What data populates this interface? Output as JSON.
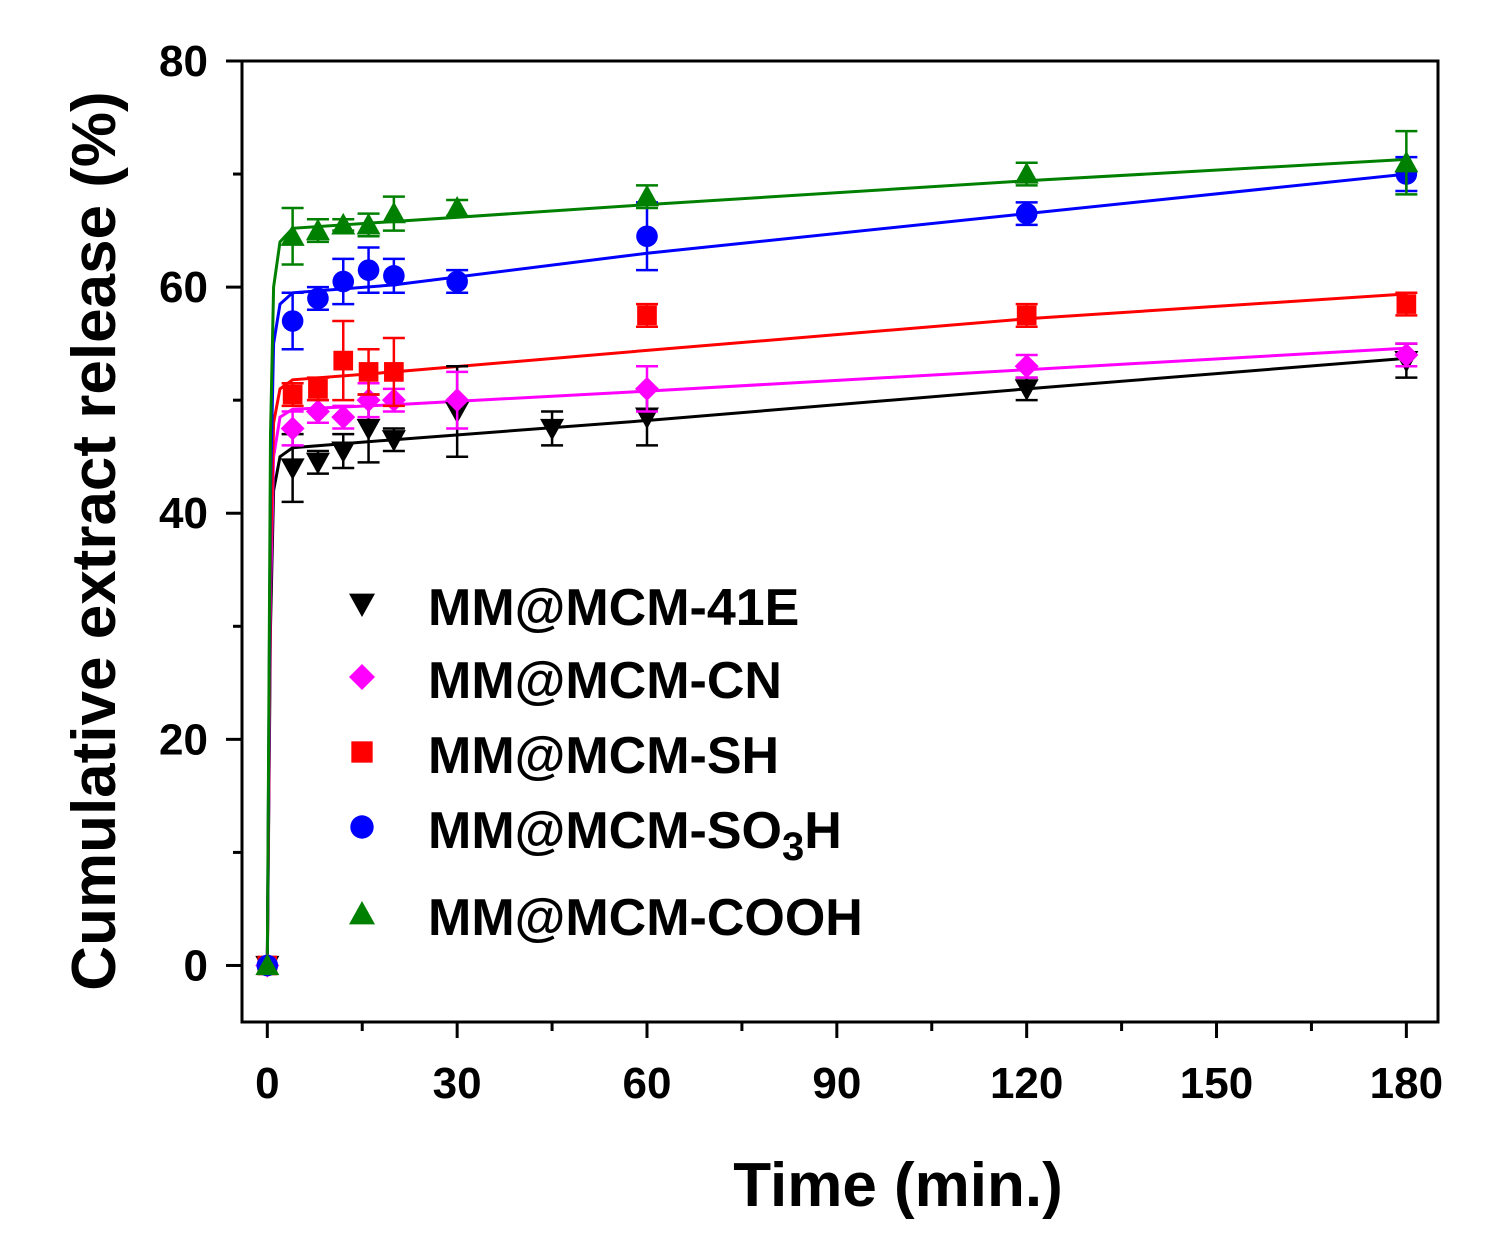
{
  "chart_data": {
    "type": "scatter",
    "title": "",
    "xlabel": "Time (min.)",
    "ylabel": "Cumulative extract release (%)",
    "xlim": [
      -4,
      185
    ],
    "ylim": [
      -5,
      80
    ],
    "xticks": [
      0,
      30,
      60,
      90,
      120,
      150,
      180
    ],
    "xtick_labels": [
      "0",
      "30",
      "60",
      "90",
      "120",
      "150",
      "180"
    ],
    "yticks": [
      0,
      20,
      40,
      60,
      80
    ],
    "ytick_labels": [
      "0",
      "20",
      "40",
      "60",
      "80"
    ],
    "legend_position": "center-left",
    "series": [
      {
        "name": "MM@MCM-41E",
        "color": "#000000",
        "marker": "triangle-down",
        "points": [
          {
            "x": 0,
            "y": 0,
            "err": 0
          },
          {
            "x": 4,
            "y": 44,
            "err": 3
          },
          {
            "x": 8,
            "y": 44.5,
            "err": 1
          },
          {
            "x": 12,
            "y": 45.5,
            "err": 1.5
          },
          {
            "x": 16,
            "y": 47.5,
            "err": 3
          },
          {
            "x": 20,
            "y": 46.5,
            "err": 1
          },
          {
            "x": 30,
            "y": 49,
            "err": 4
          },
          {
            "x": 45,
            "y": 47.5,
            "err": 1.5
          },
          {
            "x": 60,
            "y": 48.5,
            "err": 2.5
          },
          {
            "x": 120,
            "y": 51,
            "err": 1
          },
          {
            "x": 180,
            "y": 53.5,
            "err": 1.5
          }
        ],
        "fit": [
          [
            0,
            0
          ],
          [
            0.5,
            30
          ],
          [
            1,
            42
          ],
          [
            2,
            45
          ],
          [
            4,
            45.8
          ],
          [
            20,
            46.5
          ],
          [
            60,
            48.2
          ],
          [
            120,
            51
          ],
          [
            180,
            53.7
          ]
        ]
      },
      {
        "name": "MM@MCM-CN",
        "color": "#ff00ff",
        "marker": "diamond",
        "points": [
          {
            "x": 0,
            "y": 0,
            "err": 0
          },
          {
            "x": 4,
            "y": 47.5,
            "err": 1.5
          },
          {
            "x": 8,
            "y": 49,
            "err": 1
          },
          {
            "x": 12,
            "y": 48.5,
            "err": 1
          },
          {
            "x": 16,
            "y": 50,
            "err": 1.5
          },
          {
            "x": 20,
            "y": 50,
            "err": 1
          },
          {
            "x": 30,
            "y": 50,
            "err": 2.5
          },
          {
            "x": 60,
            "y": 51,
            "err": 2
          },
          {
            "x": 120,
            "y": 53,
            "err": 1
          },
          {
            "x": 180,
            "y": 54,
            "err": 1
          }
        ],
        "fit": [
          [
            0,
            0
          ],
          [
            0.5,
            33
          ],
          [
            1,
            45
          ],
          [
            2,
            48.5
          ],
          [
            4,
            49.2
          ],
          [
            20,
            49.6
          ],
          [
            60,
            50.8
          ],
          [
            120,
            52.7
          ],
          [
            180,
            54.6
          ]
        ]
      },
      {
        "name": "MM@MCM-SH",
        "color": "#ff0000",
        "marker": "square",
        "points": [
          {
            "x": 0,
            "y": 0,
            "err": 0
          },
          {
            "x": 4,
            "y": 50.5,
            "err": 1
          },
          {
            "x": 8,
            "y": 51,
            "err": 1
          },
          {
            "x": 12,
            "y": 53.5,
            "err": 3.5
          },
          {
            "x": 16,
            "y": 52.5,
            "err": 2
          },
          {
            "x": 20,
            "y": 52.5,
            "err": 3
          },
          {
            "x": 60,
            "y": 57.5,
            "err": 1
          },
          {
            "x": 120,
            "y": 57.5,
            "err": 1
          },
          {
            "x": 180,
            "y": 58.5,
            "err": 1
          }
        ],
        "fit": [
          [
            0,
            0
          ],
          [
            0.5,
            36
          ],
          [
            1,
            48
          ],
          [
            2,
            51
          ],
          [
            4,
            51.8
          ],
          [
            20,
            52.5
          ],
          [
            60,
            54.4
          ],
          [
            120,
            57.2
          ],
          [
            180,
            59.4
          ]
        ]
      },
      {
        "name": "MM@MCM-SO₃H",
        "color": "#0000ff",
        "marker": "circle",
        "points": [
          {
            "x": 0,
            "y": 0,
            "err": 0
          },
          {
            "x": 4,
            "y": 57,
            "err": 2.5
          },
          {
            "x": 8,
            "y": 59,
            "err": 1
          },
          {
            "x": 12,
            "y": 60.5,
            "err": 2
          },
          {
            "x": 16,
            "y": 61.5,
            "err": 2
          },
          {
            "x": 20,
            "y": 61,
            "err": 1.5
          },
          {
            "x": 30,
            "y": 60.5,
            "err": 1
          },
          {
            "x": 60,
            "y": 64.5,
            "err": 3
          },
          {
            "x": 120,
            "y": 66.5,
            "err": 1
          },
          {
            "x": 180,
            "y": 70,
            "err": 1.5
          }
        ],
        "fit": [
          [
            0,
            0
          ],
          [
            0.5,
            42
          ],
          [
            1,
            55
          ],
          [
            2,
            58.5
          ],
          [
            4,
            59.5
          ],
          [
            20,
            60.2
          ],
          [
            60,
            63
          ],
          [
            120,
            66.5
          ],
          [
            180,
            70
          ]
        ]
      },
      {
        "name": "MM@MCM-COOH",
        "color": "#008000",
        "marker": "triangle-up",
        "points": [
          {
            "x": 0,
            "y": 0,
            "err": 0
          },
          {
            "x": 4,
            "y": 64.5,
            "err": 2.5
          },
          {
            "x": 8,
            "y": 65,
            "err": 1
          },
          {
            "x": 12,
            "y": 65.5,
            "err": 0.5
          },
          {
            "x": 16,
            "y": 65.5,
            "err": 1
          },
          {
            "x": 20,
            "y": 66.5,
            "err": 1.5
          },
          {
            "x": 30,
            "y": 67,
            "err": 0.7
          },
          {
            "x": 60,
            "y": 68,
            "err": 1
          },
          {
            "x": 120,
            "y": 70,
            "err": 1
          },
          {
            "x": 180,
            "y": 71,
            "err": 2.8
          }
        ],
        "fit": [
          [
            0,
            0
          ],
          [
            0.5,
            47
          ],
          [
            1,
            60
          ],
          [
            2,
            64
          ],
          [
            4,
            65.2
          ],
          [
            20,
            65.8
          ],
          [
            60,
            67.3
          ],
          [
            120,
            69.4
          ],
          [
            180,
            71.3
          ]
        ]
      }
    ]
  }
}
